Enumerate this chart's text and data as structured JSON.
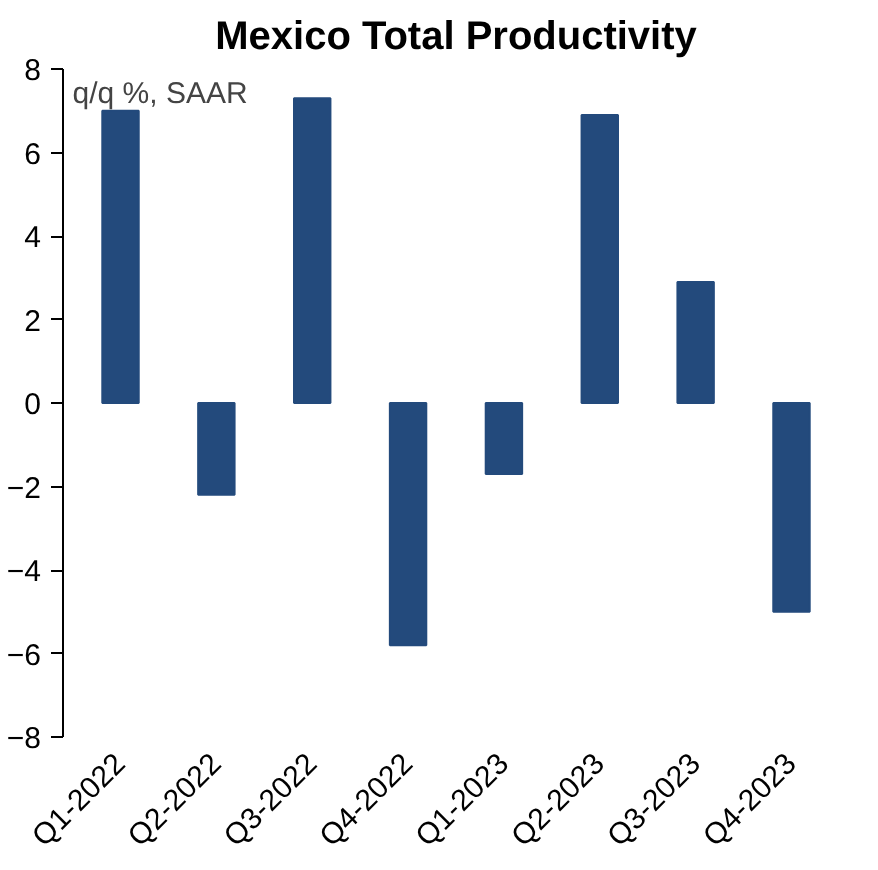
{
  "chart_data": {
    "type": "bar",
    "title": "Mexico Total Productivity",
    "annotations": [
      "q/q %, SAAR"
    ],
    "categories": [
      "Q1-2022",
      "Q2-2022",
      "Q3-2022",
      "Q4-2022",
      "Q1-2023",
      "Q2-2023",
      "Q3-2023",
      "Q4-2023"
    ],
    "values": [
      7.0,
      -2.2,
      7.3,
      -5.8,
      -1.7,
      6.9,
      2.9,
      -5.0
    ],
    "color": "#234a7c",
    "ylim": [
      -8,
      8
    ],
    "yticks": [
      -8,
      -6,
      -4,
      -2,
      0,
      2,
      4,
      6,
      8
    ],
    "grid": false
  }
}
